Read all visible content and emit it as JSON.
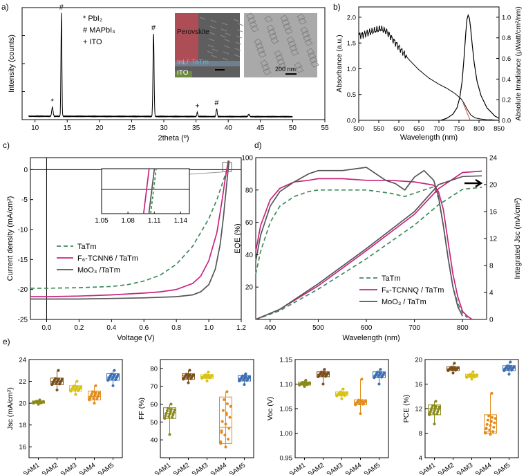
{
  "figure": {
    "panel_labels": [
      "a)",
      "b)",
      "c)",
      "d)",
      "e)"
    ],
    "colors": {
      "black": "#000000",
      "gray": "#555555",
      "magenta": "#c8237f",
      "green": "#3f8a5c",
      "olive": "#8a8a1c",
      "brown": "#7b4f1a",
      "yellow": "#d8c214",
      "orange": "#e38c1e",
      "blue": "#3d6fb3"
    }
  },
  "chart_data": [
    {
      "id": "a",
      "type": "line",
      "xlabel": "2theta (º)",
      "ylabel": "Intensity (counts)",
      "xlim": [
        8,
        55
      ],
      "ylim": [
        0,
        100
      ],
      "xticks": [
        10,
        15,
        20,
        25,
        30,
        35,
        40,
        45,
        50,
        55
      ],
      "x_range": [
        9,
        50
      ],
      "baseline": 3,
      "peaks": [
        {
          "x": 12.7,
          "height": 8,
          "width": 0.15,
          "marker": "*"
        },
        {
          "x": 14.1,
          "height": 92,
          "width": 0.1,
          "marker": "#"
        },
        {
          "x": 28.4,
          "height": 74,
          "width": 0.12,
          "marker": "#"
        },
        {
          "x": 35.2,
          "height": 4,
          "width": 0.1,
          "marker": "+"
        },
        {
          "x": 38.2,
          "height": 7,
          "width": 0.12,
          "marker": "#"
        },
        {
          "x": 43.2,
          "height": 2,
          "width": 0.15,
          "marker": ""
        }
      ],
      "legend": [
        "* PbI₂",
        "# MAPbI₃",
        "+ ITO"
      ],
      "inset_left": {
        "labels": [
          "Perovskite",
          "InL/",
          "TaTm",
          "ITO"
        ]
      },
      "inset_right": {
        "scalebar": "200 nm"
      }
    },
    {
      "id": "b",
      "type": "line",
      "xlabel": "Wavelength (nm)",
      "ylabel": "Absorbance (a.u.)",
      "ylabel_right": "Absolute Irradiance (μWatt/cm²/nm)",
      "xlim": [
        500,
        850
      ],
      "ylim": [
        0,
        2.2
      ],
      "ylim_right": [
        0,
        1.1
      ],
      "xticks": [
        500,
        550,
        600,
        650,
        700,
        750,
        800,
        850
      ],
      "yticks": [
        0.0,
        0.5,
        1.0,
        1.5,
        2.0
      ],
      "yticks_right": [
        0.0,
        0.2,
        0.4,
        0.6,
        0.8,
        1.0
      ],
      "series": [
        {
          "name": "Absorbance",
          "axis": "left",
          "x": [
            500,
            510,
            525,
            540,
            555,
            570,
            580,
            600,
            625,
            650,
            675,
            700,
            720,
            740,
            755,
            762,
            770,
            780,
            790,
            800,
            810,
            820,
            830,
            850
          ],
          "y": [
            1.65,
            1.66,
            1.7,
            1.74,
            1.78,
            1.72,
            1.62,
            1.42,
            1.18,
            0.98,
            0.82,
            0.7,
            0.62,
            0.52,
            0.42,
            0.34,
            0.22,
            0.1,
            0.05,
            0.03,
            0.02,
            0.01,
            0.01,
            0.0
          ]
        },
        {
          "name": "Irradiance",
          "axis": "right",
          "x": [
            705,
            720,
            735,
            745,
            752,
            758,
            763,
            767,
            770,
            773,
            776,
            779,
            783,
            788,
            795,
            805,
            820,
            840,
            850
          ],
          "y": [
            0.0,
            0.02,
            0.06,
            0.12,
            0.22,
            0.38,
            0.62,
            0.85,
            0.98,
            1.02,
            0.99,
            0.9,
            0.74,
            0.56,
            0.38,
            0.24,
            0.12,
            0.04,
            0.02
          ]
        }
      ]
    },
    {
      "id": "c",
      "type": "line",
      "xlabel": "Voltage (V)",
      "ylabel": "Current density (mA/cm²)",
      "xlim": [
        -0.1,
        1.2
      ],
      "ylim": [
        -25,
        2
      ],
      "xticks": [
        0.0,
        0.2,
        0.4,
        0.6,
        0.8,
        1.0,
        1.2
      ],
      "yticks": [
        0,
        -5,
        -10,
        -15,
        -20,
        -25
      ],
      "series": [
        {
          "name": "TaTm",
          "style": "dashed",
          "color": "#3f8a5c",
          "x": [
            -0.1,
            0.0,
            0.2,
            0.4,
            0.5,
            0.6,
            0.7,
            0.8,
            0.9,
            1.0,
            1.05,
            1.1,
            1.13
          ],
          "y": [
            -19.8,
            -19.8,
            -19.7,
            -19.5,
            -19.2,
            -18.6,
            -17.6,
            -15.8,
            -12.8,
            -8.2,
            -5.0,
            -1.0,
            1.5
          ]
        },
        {
          "name": "F₆-TCNN6 / TaTm",
          "style": "solid",
          "color": "#c8237f",
          "x": [
            -0.1,
            0.0,
            0.2,
            0.4,
            0.6,
            0.7,
            0.8,
            0.9,
            0.95,
            1.0,
            1.05,
            1.08,
            1.1,
            1.12
          ],
          "y": [
            -21.2,
            -21.2,
            -21.1,
            -20.9,
            -20.6,
            -20.4,
            -20.0,
            -19.0,
            -17.8,
            -15.2,
            -10.5,
            -5.5,
            -1.8,
            1.5
          ]
        },
        {
          "name": "MoO₃ /TaTm",
          "style": "solid",
          "color": "#555555",
          "x": [
            -0.1,
            0.0,
            0.2,
            0.4,
            0.6,
            0.8,
            0.9,
            0.95,
            1.0,
            1.04,
            1.07,
            1.09,
            1.11,
            1.125
          ],
          "y": [
            -21.6,
            -21.6,
            -21.6,
            -21.5,
            -21.4,
            -21.2,
            -20.9,
            -20.4,
            -19.2,
            -16.6,
            -12.5,
            -8.0,
            -2.5,
            1.5
          ]
        }
      ],
      "inset": {
        "xlim": [
          1.05,
          1.15
        ],
        "xticks": [
          1.05,
          1.08,
          1.11,
          1.14
        ],
        "crossing_v": {
          "TaTm": 1.109,
          "F₆-TCNN6 / TaTm": 1.101,
          "MoO₃ /TaTm": 1.107
        }
      }
    },
    {
      "id": "d",
      "type": "line",
      "xlabel": "Wavelength (nm)",
      "ylabel": "EQE (%)",
      "ylabel_right": "Integrated Jsc (mA/cm²)",
      "xlim": [
        370,
        850
      ],
      "ylim": [
        0,
        100
      ],
      "ylim_right": [
        0,
        24
      ],
      "xticks": [
        400,
        500,
        600,
        700,
        800
      ],
      "yticks": [
        20,
        40,
        60,
        80,
        100
      ],
      "yticks_right": [
        0,
        4,
        8,
        12,
        16,
        20,
        24
      ],
      "series": [
        {
          "name": "TaTm",
          "kind": "eqe",
          "style": "dashed",
          "color": "#3f8a5c",
          "x": [
            370,
            380,
            400,
            420,
            450,
            480,
            500,
            550,
            600,
            650,
            680,
            700,
            720,
            740,
            750,
            760,
            770,
            780,
            790,
            800,
            810
          ],
          "y": [
            28,
            42,
            60,
            70,
            76,
            79,
            80,
            80,
            80,
            78,
            76,
            78,
            80,
            82,
            75,
            58,
            38,
            20,
            10,
            4,
            1
          ]
        },
        {
          "name": "F₆-TCNNQ / TaTm",
          "kind": "eqe",
          "style": "solid",
          "color": "#c8237f",
          "x": [
            370,
            380,
            400,
            420,
            450,
            480,
            500,
            550,
            600,
            650,
            700,
            720,
            740,
            750,
            760,
            770,
            780,
            790,
            800,
            810,
            820
          ],
          "y": [
            42,
            58,
            74,
            81,
            85,
            86,
            87,
            87,
            86,
            86,
            85,
            84,
            83,
            79,
            68,
            48,
            28,
            14,
            5,
            2,
            0
          ]
        },
        {
          "name": "MoO₃ / TaTm",
          "kind": "eqe",
          "style": "solid",
          "color": "#555555",
          "x": [
            370,
            380,
            400,
            420,
            450,
            480,
            500,
            550,
            600,
            640,
            660,
            680,
            700,
            720,
            740,
            750,
            760,
            770,
            780,
            790,
            800
          ],
          "y": [
            36,
            52,
            70,
            79,
            85,
            90,
            92,
            92,
            94,
            86,
            84,
            80,
            88,
            92,
            86,
            76,
            58,
            38,
            20,
            8,
            2
          ]
        },
        {
          "name": "TaTm",
          "kind": "jsc",
          "style": "dashed",
          "color": "#3f8a5c",
          "x": [
            370,
            420,
            500,
            600,
            700,
            750,
            800,
            840
          ],
          "y": [
            0.0,
            1.3,
            4.5,
            9.0,
            14.0,
            17.0,
            19.3,
            19.6
          ]
        },
        {
          "name": "F₆-TCNNQ / TaTm",
          "kind": "jsc",
          "style": "solid",
          "color": "#c8237f",
          "x": [
            370,
            420,
            500,
            600,
            700,
            750,
            800,
            840
          ],
          "y": [
            0.0,
            1.5,
            5.0,
            10.2,
            15.6,
            19.4,
            21.8,
            22.0
          ]
        },
        {
          "name": "MoO₃ / TaTm",
          "kind": "jsc",
          "style": "solid",
          "color": "#555555",
          "x": [
            370,
            420,
            500,
            600,
            700,
            750,
            800,
            840
          ],
          "y": [
            0.0,
            1.5,
            5.3,
            10.5,
            16.0,
            20.0,
            21.2,
            21.3
          ]
        }
      ]
    },
    {
      "id": "e1",
      "type": "box",
      "ylabel": "Jsc (mA/cm²)",
      "ylim": [
        15,
        24
      ],
      "yticks": [
        16,
        18,
        20,
        22,
        24
      ],
      "categories": [
        "SAM1",
        "SAM2",
        "SAM3",
        "SAM4",
        "SAM5"
      ],
      "colors": [
        "#8a8a1c",
        "#7b4f1a",
        "#d8c214",
        "#e38c1e",
        "#3d6fb3"
      ],
      "boxes": [
        {
          "min": 19.9,
          "q1": 20.0,
          "median": 20.1,
          "q3": 20.2,
          "max": 20.3
        },
        {
          "min": 21.2,
          "q1": 21.7,
          "median": 22.0,
          "q3": 22.3,
          "max": 23.0
        },
        {
          "min": 20.8,
          "q1": 21.1,
          "median": 21.3,
          "q3": 21.6,
          "max": 22.0
        },
        {
          "min": 20.0,
          "q1": 20.3,
          "median": 20.6,
          "q3": 21.1,
          "max": 21.6
        },
        {
          "min": 21.6,
          "q1": 22.1,
          "median": 22.4,
          "q3": 22.7,
          "max": 23.0
        }
      ]
    },
    {
      "id": "e2",
      "type": "box",
      "ylabel": "FF (%)",
      "ylim": [
        30,
        85
      ],
      "yticks": [
        40,
        50,
        60,
        70,
        80
      ],
      "categories": [
        "SAM1",
        "SAM2",
        "SAM3",
        "SAM4",
        "SAM5"
      ],
      "colors": [
        "#8a8a1c",
        "#7b4f1a",
        "#d8c214",
        "#e38c1e",
        "#3d6fb3"
      ],
      "boxes": [
        {
          "min": 43,
          "q1": 52,
          "median": 55,
          "q3": 58,
          "max": 60
        },
        {
          "min": 72,
          "q1": 74,
          "median": 76,
          "q3": 77,
          "max": 79
        },
        {
          "min": 73,
          "q1": 74.5,
          "median": 75.5,
          "q3": 76.5,
          "max": 78
        },
        {
          "min": 36,
          "q1": 38,
          "median": 47,
          "q3": 64,
          "max": 67
        },
        {
          "min": 71,
          "q1": 73,
          "median": 74.5,
          "q3": 76,
          "max": 77
        }
      ]
    },
    {
      "id": "e3",
      "type": "box",
      "ylabel": "Voc (V)",
      "ylim": [
        0.95,
        1.15
      ],
      "yticks": [
        0.95,
        1.0,
        1.05,
        1.1,
        1.15
      ],
      "categories": [
        "SAM1",
        "SAM2",
        "SAM3",
        "SAM4",
        "SAM5"
      ],
      "colors": [
        "#8a8a1c",
        "#7b4f1a",
        "#d8c214",
        "#e38c1e",
        "#3d6fb3"
      ],
      "boxes": [
        {
          "min": 1.095,
          "q1": 1.098,
          "median": 1.1,
          "q3": 1.104,
          "max": 1.108
        },
        {
          "min": 1.1,
          "q1": 1.115,
          "median": 1.12,
          "q3": 1.125,
          "max": 1.13
        },
        {
          "min": 1.07,
          "q1": 1.076,
          "median": 1.08,
          "q3": 1.084,
          "max": 1.09
        },
        {
          "min": 1.04,
          "q1": 1.058,
          "median": 1.063,
          "q3": 1.068,
          "max": 1.11
        },
        {
          "min": 1.1,
          "q1": 1.113,
          "median": 1.118,
          "q3": 1.125,
          "max": 1.13
        }
      ]
    },
    {
      "id": "e4",
      "type": "box",
      "ylabel": "PCE (%)",
      "ylim": [
        4,
        20
      ],
      "yticks": [
        4,
        8,
        12,
        16,
        20
      ],
      "categories": [
        "SAM1",
        "SAM2",
        "SAM3",
        "SAM4",
        "SAM5"
      ],
      "colors": [
        "#8a8a1c",
        "#7b4f1a",
        "#d8c214",
        "#e38c1e",
        "#3d6fb3"
      ],
      "boxes": [
        {
          "min": 9.5,
          "q1": 11.0,
          "median": 12.0,
          "q3": 12.6,
          "max": 13.2
        },
        {
          "min": 17.8,
          "q1": 18.2,
          "median": 18.5,
          "q3": 18.8,
          "max": 19.4
        },
        {
          "min": 16.8,
          "q1": 17.1,
          "median": 17.3,
          "q3": 17.6,
          "max": 18.0
        },
        {
          "min": 7.8,
          "q1": 8.0,
          "median": 8.2,
          "q3": 11.0,
          "max": 14.5
        },
        {
          "min": 17.6,
          "q1": 18.2,
          "median": 18.6,
          "q3": 19.0,
          "max": 19.6
        }
      ]
    }
  ]
}
